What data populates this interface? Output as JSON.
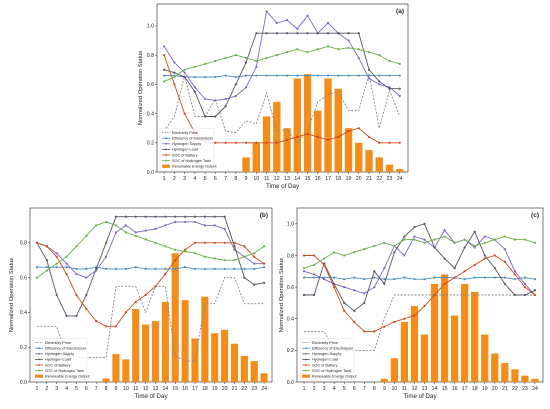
{
  "chart_data": [
    {
      "panel": "(a)",
      "type": "line",
      "xlabel": "Time of Day",
      "ylabel": "Normalized Operation Status",
      "x": [
        1,
        2,
        3,
        4,
        5,
        6,
        7,
        8,
        9,
        10,
        11,
        12,
        13,
        14,
        15,
        16,
        17,
        18,
        19,
        20,
        21,
        22,
        23,
        24
      ],
      "xticks": [
        "1",
        "2",
        "3",
        "4",
        "5",
        "6",
        "7",
        "8",
        "9",
        "10",
        "11",
        "12",
        "13",
        "14",
        "15",
        "16",
        "17",
        "18",
        "19",
        "20",
        "21",
        "22",
        "23",
        "24"
      ],
      "ylim": [
        0,
        1.15
      ],
      "yticks": [
        "0.0",
        "0.2",
        "0.4",
        "0.6",
        "0.8",
        "1.0"
      ],
      "ytick_values": [
        0,
        0.2,
        0.4,
        0.6,
        0.8,
        1.0
      ],
      "legend_position": "lower-left",
      "series": [
        {
          "name": "Electricity Price",
          "color": "#888888",
          "style": "dashed",
          "values": [
            0.28,
            0.38,
            0.66,
            0.38,
            0.38,
            0.5,
            0.28,
            0.27,
            0.35,
            0.33,
            0.54,
            0.28,
            0.29,
            0.2,
            0.28,
            0.48,
            0.53,
            0.55,
            0.42,
            0.42,
            0.67,
            0.3,
            0.56,
            0.38
          ]
        },
        {
          "name": "Efficiency of Electrolyzer",
          "color": "#4a90c8",
          "style": "solid",
          "values": [
            0.66,
            0.66,
            0.65,
            0.65,
            0.65,
            0.65,
            0.66,
            0.65,
            0.66,
            0.66,
            0.66,
            0.66,
            0.66,
            0.66,
            0.66,
            0.66,
            0.66,
            0.66,
            0.66,
            0.66,
            0.66,
            0.66,
            0.66,
            0.66
          ]
        },
        {
          "name": "Hydrogen Supply",
          "color": "#7b68c8",
          "style": "solid",
          "values": [
            0.86,
            0.75,
            0.68,
            0.58,
            0.5,
            0.49,
            0.5,
            0.52,
            0.58,
            0.72,
            1.1,
            1.02,
            1.04,
            0.98,
            1.07,
            0.95,
            1.02,
            0.95,
            0.9,
            0.78,
            0.64,
            0.6,
            0.58,
            0.52
          ]
        },
        {
          "name": "Hydrogen Load",
          "color": "#555566",
          "style": "solid",
          "values": [
            0.7,
            0.68,
            0.65,
            0.55,
            0.38,
            0.38,
            0.45,
            0.6,
            0.75,
            0.95,
            0.95,
            0.95,
            0.95,
            0.95,
            0.95,
            0.95,
            0.95,
            0.95,
            0.95,
            0.95,
            0.7,
            0.62,
            0.57,
            0.57
          ]
        },
        {
          "name": "SOC of Battery",
          "color": "#d04a1a",
          "style": "solid",
          "values": [
            0.8,
            0.6,
            0.4,
            0.27,
            0.2,
            0.2,
            0.2,
            0.2,
            0.2,
            0.2,
            0.2,
            0.2,
            0.22,
            0.24,
            0.26,
            0.24,
            0.22,
            0.24,
            0.28,
            0.3,
            0.24,
            0.2,
            0.2,
            0.2
          ]
        },
        {
          "name": "SOC of Hydrogen Tank",
          "color": "#6ab04c",
          "style": "solid",
          "values": [
            0.62,
            0.65,
            0.7,
            0.72,
            0.74,
            0.76,
            0.78,
            0.8,
            0.78,
            0.76,
            0.78,
            0.8,
            0.82,
            0.84,
            0.82,
            0.84,
            0.86,
            0.84,
            0.85,
            0.84,
            0.82,
            0.8,
            0.76,
            0.74
          ]
        }
      ],
      "bars": {
        "name": "Renewable Energy Output",
        "color": "#f28c1a",
        "values": [
          0,
          0,
          0,
          0,
          0,
          0,
          0,
          0,
          0.1,
          0.2,
          0.38,
          0.48,
          0.3,
          0.64,
          0.67,
          0.42,
          0.64,
          0.57,
          0.3,
          0.2,
          0.15,
          0.1,
          0.05,
          0.02
        ]
      }
    },
    {
      "panel": "(b)",
      "type": "line",
      "xlabel": "Time of Day",
      "ylabel": "Normalized Operation Status",
      "x": [
        1,
        2,
        3,
        4,
        5,
        6,
        7,
        8,
        9,
        10,
        11,
        12,
        13,
        14,
        15,
        16,
        17,
        18,
        19,
        20,
        21,
        22,
        23,
        24
      ],
      "xticks": [
        "1",
        "2",
        "3",
        "4",
        "5",
        "6",
        "7",
        "8",
        "9",
        "10",
        "11",
        "12",
        "13",
        "14",
        "15",
        "16",
        "17",
        "18",
        "19",
        "20",
        "21",
        "22",
        "23",
        "24"
      ],
      "ylim": [
        0,
        1.0
      ],
      "yticks": [
        "0.0",
        "0.2",
        "0.4",
        "0.6",
        "0.8"
      ],
      "ytick_values": [
        0,
        0.2,
        0.4,
        0.6,
        0.8
      ],
      "legend_position": "lower-left",
      "series": [
        {
          "name": "Electricity Price",
          "color": "#888888",
          "style": "dashed",
          "values": [
            0.32,
            0.32,
            0.32,
            0.15,
            0.14,
            0.14,
            0.14,
            0.14,
            0.55,
            0.55,
            0.55,
            0.4,
            0.55,
            0.55,
            0.15,
            0.12,
            0.12,
            0.45,
            0.45,
            0.6,
            0.6,
            0.45,
            0.45,
            0.45
          ]
        },
        {
          "name": "Efficiency of Electrolyzer",
          "color": "#4a90c8",
          "style": "solid",
          "values": [
            0.66,
            0.66,
            0.66,
            0.66,
            0.65,
            0.65,
            0.66,
            0.65,
            0.65,
            0.65,
            0.66,
            0.65,
            0.65,
            0.65,
            0.65,
            0.66,
            0.65,
            0.65,
            0.65,
            0.65,
            0.65,
            0.65,
            0.65,
            0.66
          ]
        },
        {
          "name": "Hydrogen Supply",
          "color": "#7b68c8",
          "style": "solid",
          "values": [
            0.8,
            0.78,
            0.74,
            0.68,
            0.62,
            0.6,
            0.64,
            0.72,
            0.86,
            0.9,
            0.86,
            0.87,
            0.88,
            0.9,
            0.92,
            0.92,
            0.92,
            0.9,
            0.9,
            0.88,
            0.76,
            0.72,
            0.68,
            0.68
          ]
        },
        {
          "name": "Hydrogen Load",
          "color": "#555566",
          "style": "solid",
          "values": [
            0.8,
            0.7,
            0.5,
            0.38,
            0.38,
            0.5,
            0.65,
            0.8,
            0.95,
            0.95,
            0.95,
            0.95,
            0.95,
            0.95,
            0.95,
            0.95,
            0.95,
            0.95,
            0.95,
            0.95,
            0.78,
            0.6,
            0.56,
            0.57
          ]
        },
        {
          "name": "SOC of Battery",
          "color": "#d04a1a",
          "style": "solid",
          "values": [
            0.8,
            0.78,
            0.72,
            0.62,
            0.5,
            0.42,
            0.35,
            0.32,
            0.32,
            0.4,
            0.46,
            0.5,
            0.55,
            0.62,
            0.7,
            0.76,
            0.8,
            0.8,
            0.8,
            0.8,
            0.8,
            0.78,
            0.72,
            0.68
          ]
        },
        {
          "name": "SOC of Hydrogen Tank",
          "color": "#6ab04c",
          "style": "solid",
          "values": [
            0.6,
            0.64,
            0.68,
            0.72,
            0.78,
            0.84,
            0.9,
            0.92,
            0.9,
            0.86,
            0.84,
            0.82,
            0.8,
            0.78,
            0.76,
            0.75,
            0.74,
            0.72,
            0.71,
            0.7,
            0.7,
            0.72,
            0.74,
            0.78
          ]
        }
      ],
      "bars": {
        "name": "Renewable Energy Output",
        "color": "#f28c1a",
        "values": [
          0,
          0,
          0,
          0,
          0,
          0,
          0,
          0.02,
          0.16,
          0.13,
          0.42,
          0.33,
          0.35,
          0.46,
          0.74,
          0.47,
          0.25,
          0.49,
          0.28,
          0.3,
          0.22,
          0.15,
          0.12,
          0.05
        ]
      }
    },
    {
      "panel": "(c)",
      "type": "line",
      "xlabel": "Time of Day",
      "ylabel": "Normalized Operation Status",
      "x": [
        1,
        2,
        3,
        4,
        5,
        6,
        7,
        8,
        9,
        10,
        11,
        12,
        13,
        14,
        15,
        16,
        17,
        18,
        19,
        20,
        21,
        22,
        23,
        24
      ],
      "xticks": [
        "1",
        "2",
        "3",
        "4",
        "5",
        "6",
        "7",
        "8",
        "9",
        "10",
        "11",
        "12",
        "13",
        "14",
        "15",
        "16",
        "17",
        "18",
        "19",
        "20",
        "21",
        "22",
        "23",
        "24"
      ],
      "ylim": [
        0,
        1.1
      ],
      "yticks": [
        "0.0",
        "0.2",
        "0.4",
        "0.6",
        "0.8",
        "1.0"
      ],
      "ytick_values": [
        0,
        0.2,
        0.4,
        0.6,
        0.8,
        1.0
      ],
      "legend_position": "lower-left",
      "series": [
        {
          "name": "Electricity Price",
          "color": "#888888",
          "style": "dashed",
          "values": [
            0.32,
            0.32,
            0.32,
            0.2,
            0.2,
            0.2,
            0.2,
            0.2,
            0.4,
            0.55,
            0.55,
            0.55,
            0.55,
            0.55,
            0.55,
            0.55,
            0.55,
            0.55,
            0.55,
            0.55,
            0.55,
            0.55,
            0.55,
            0.55
          ]
        },
        {
          "name": "Efficiency of Electrolyzer",
          "color": "#4a90c8",
          "style": "solid",
          "values": [
            0.66,
            0.66,
            0.66,
            0.66,
            0.65,
            0.66,
            0.65,
            0.66,
            0.65,
            0.65,
            0.66,
            0.65,
            0.65,
            0.66,
            0.66,
            0.66,
            0.65,
            0.66,
            0.66,
            0.66,
            0.66,
            0.65,
            0.66,
            0.65
          ]
        },
        {
          "name": "Hydrogen Supply",
          "color": "#7b68c8",
          "style": "solid",
          "values": [
            0.7,
            0.68,
            0.65,
            0.62,
            0.6,
            0.58,
            0.56,
            0.6,
            0.72,
            0.86,
            0.8,
            0.92,
            0.9,
            0.85,
            0.96,
            0.88,
            0.9,
            0.85,
            0.92,
            0.9,
            0.84,
            0.7,
            0.62,
            0.55
          ]
        },
        {
          "name": "Hydrogen Load",
          "color": "#555566",
          "style": "solid",
          "values": [
            0.55,
            0.55,
            0.75,
            0.62,
            0.5,
            0.45,
            0.5,
            0.7,
            0.62,
            0.82,
            0.92,
            0.98,
            1.0,
            0.85,
            0.78,
            0.72,
            0.85,
            0.95,
            0.8,
            0.72,
            0.62,
            0.55,
            0.55,
            0.58
          ]
        },
        {
          "name": "SOC of Battery",
          "color": "#d04a1a",
          "style": "solid",
          "values": [
            0.8,
            0.8,
            0.74,
            0.6,
            0.45,
            0.38,
            0.32,
            0.32,
            0.35,
            0.38,
            0.4,
            0.42,
            0.48,
            0.55,
            0.62,
            0.66,
            0.7,
            0.74,
            0.78,
            0.8,
            0.76,
            0.68,
            0.6,
            0.55
          ]
        },
        {
          "name": "SOC of Hydrogen Tank",
          "color": "#6ab04c",
          "style": "solid",
          "values": [
            0.72,
            0.74,
            0.78,
            0.82,
            0.8,
            0.82,
            0.84,
            0.86,
            0.88,
            0.86,
            0.9,
            0.9,
            0.88,
            0.9,
            0.92,
            0.88,
            0.9,
            0.86,
            0.88,
            0.9,
            0.92,
            0.9,
            0.9,
            0.88
          ]
        }
      ],
      "bars": {
        "name": "Renewable Energy Output",
        "color": "#f28c1a",
        "values": [
          0,
          0,
          0,
          0,
          0,
          0,
          0,
          0,
          0.02,
          0.15,
          0.38,
          0.48,
          0.3,
          0.62,
          0.68,
          0.42,
          0.62,
          0.57,
          0.3,
          0.18,
          0.12,
          0.08,
          0.04,
          0.02
        ]
      }
    }
  ]
}
